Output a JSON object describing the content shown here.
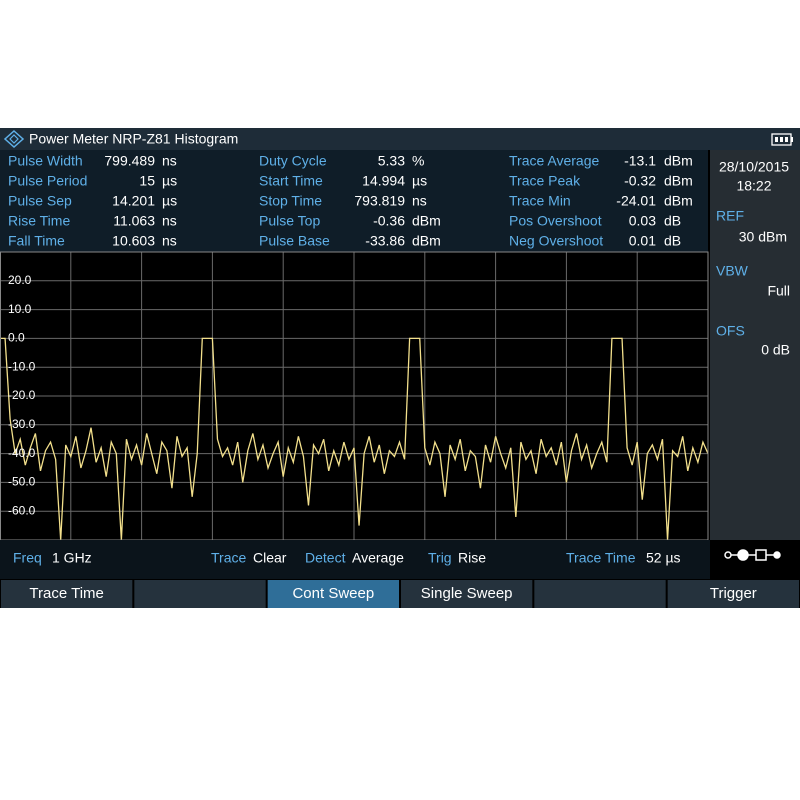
{
  "header": {
    "title": "Power Meter NRP-Z81 Histogram"
  },
  "measurements": [
    [
      {
        "label": "Pulse Width",
        "value": "799.489",
        "unit": "ns"
      },
      {
        "label": "Pulse Period",
        "value": "15",
        "unit": "µs"
      },
      {
        "label": "Pulse Sep",
        "value": "14.201",
        "unit": "µs"
      },
      {
        "label": "Rise Time",
        "value": "11.063",
        "unit": "ns"
      },
      {
        "label": "Fall Time",
        "value": "10.603",
        "unit": "ns"
      }
    ],
    [
      {
        "label": "Duty Cycle",
        "value": "5.33",
        "unit": "%"
      },
      {
        "label": "Start Time",
        "value": "14.994",
        "unit": "µs"
      },
      {
        "label": "Stop Time",
        "value": "793.819",
        "unit": "ns"
      },
      {
        "label": "Pulse Top",
        "value": "-0.36",
        "unit": "dBm"
      },
      {
        "label": "Pulse Base",
        "value": "-33.86",
        "unit": "dBm"
      }
    ],
    [
      {
        "label": "Trace Average",
        "value": "-13.1",
        "unit": "dBm"
      },
      {
        "label": "Trace Peak",
        "value": "-0.32",
        "unit": "dBm"
      },
      {
        "label": "Trace Min",
        "value": "-24.01",
        "unit": "dBm"
      },
      {
        "label": "Pos Overshoot",
        "value": "0.03",
        "unit": "dB"
      },
      {
        "label": "Neg Overshoot",
        "value": "0.01",
        "unit": "dB"
      }
    ]
  ],
  "side": {
    "date": "28/10/2015",
    "time": "18:22",
    "ref_label": "REF",
    "ref_value": "30 dBm",
    "vbw_label": "VBW",
    "vbw_value": "Full",
    "ofs_label": "OFS",
    "ofs_value": "0 dB"
  },
  "chart_data": {
    "type": "line",
    "ylim": [
      -70,
      30
    ],
    "yticks": [
      {
        "value": 20,
        "label": "20.0"
      },
      {
        "value": 10,
        "label": "10.0"
      },
      {
        "value": 0,
        "label": "0.0"
      },
      {
        "value": -10,
        "label": "-10.0"
      },
      {
        "value": -20,
        "label": "-20.0"
      },
      {
        "value": -30,
        "label": "-30.0"
      },
      {
        "value": -40,
        "label": "-40.0"
      },
      {
        "value": -50,
        "label": "-50.0"
      },
      {
        "value": -60,
        "label": "-60.0"
      }
    ],
    "grid": true,
    "series": [
      {
        "color": "#f3e08c",
        "values": [
          0,
          0,
          -28,
          -40,
          -35,
          -44,
          -38,
          -33,
          -46,
          -39,
          -36,
          -42,
          -70,
          -37,
          -41,
          -34,
          -45,
          -39,
          -31,
          -43,
          -38,
          -48,
          -36,
          -40,
          -70,
          -35,
          -42,
          -37,
          -44,
          -33,
          -40,
          -47,
          -36,
          -39,
          -52,
          -34,
          -41,
          -38,
          -55,
          -40,
          0,
          0,
          0,
          -35,
          -41,
          -38,
          -44,
          -36,
          -50,
          -39,
          -33,
          -42,
          -37,
          -45,
          -40,
          -36,
          -48,
          -38,
          -43,
          -34,
          -41,
          -58,
          -37,
          -40,
          -35,
          -46,
          -39,
          -44,
          -36,
          -42,
          -38,
          -65,
          -40,
          -34,
          -43,
          -37,
          -47,
          -39,
          -41,
          -36,
          -42,
          0,
          0,
          0,
          -38,
          -44,
          -36,
          -40,
          -55,
          -37,
          -42,
          -35,
          -46,
          -39,
          -41,
          -52,
          -37,
          -43,
          -34,
          -40,
          -45,
          -38,
          -62,
          -36,
          -42,
          -39,
          -47,
          -35,
          -41,
          -38,
          -44,
          -36,
          -50,
          -39,
          -33,
          -42,
          -37,
          -45,
          -40,
          -36,
          -43,
          0,
          0,
          0,
          -38,
          -44,
          -36,
          -56,
          -40,
          -37,
          -42,
          -35,
          -70,
          -39,
          -41,
          -34,
          -46,
          -38,
          -43,
          -36,
          -40
        ]
      }
    ]
  },
  "status": [
    {
      "label": "Freq",
      "value": "1 GHz"
    },
    {
      "label": "Trace",
      "value": "Clear"
    },
    {
      "label": "Detect",
      "value": "Average"
    },
    {
      "label": "Trig",
      "value": "Rise"
    },
    {
      "label": "Trace Time",
      "value": "52 µs"
    }
  ],
  "softkeys": [
    "Trace Time",
    "Cont Sweep",
    "Single Sweep",
    "Trigger"
  ]
}
